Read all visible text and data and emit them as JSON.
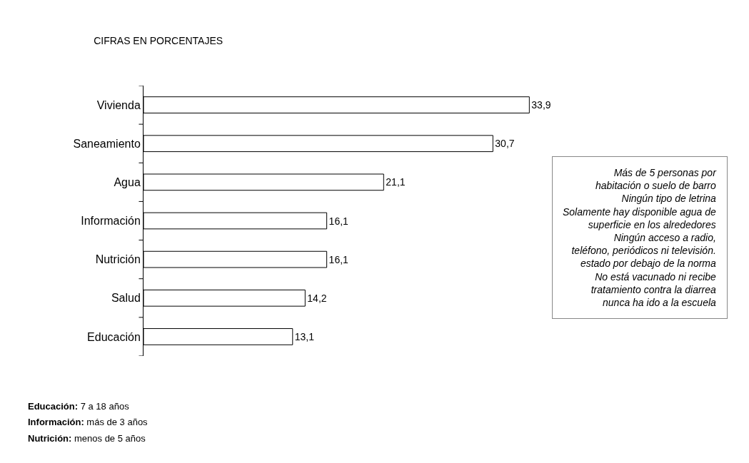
{
  "chart_data": {
    "type": "bar",
    "orientation": "horizontal",
    "title": "CIFRAS EN PORCENTAJES",
    "categories": [
      "Vivienda",
      "Saneamiento",
      "Agua",
      "Información",
      "Nutrición",
      "Salud",
      "Educación"
    ],
    "values": [
      33.9,
      30.7,
      21.1,
      16.1,
      16.1,
      14.2,
      13.1
    ],
    "value_labels": [
      "33,9",
      "30,7",
      "21,1",
      "16,1",
      "16,1",
      "14,2",
      "13,1"
    ],
    "color": "#ffffff",
    "legend": false,
    "annotations": [
      "Más de 5 personas por\nhabitación o suelo de barro\nNingún tipo de letrina\nSolamente hay disponible agua de\nsuperficie en los alrededores\nNingún acceso a radio,\nteléfono, periódicos ni televisión.\nestado por debajo de la norma\nNo está vacunado ni recibe\ntratamiento contra la diarrea\nnunca ha ido a la escuela",
      "Educación: 7 a 18 años",
      "Información: más de 3 años",
      "Nutrición: menos de 5 años"
    ]
  }
}
